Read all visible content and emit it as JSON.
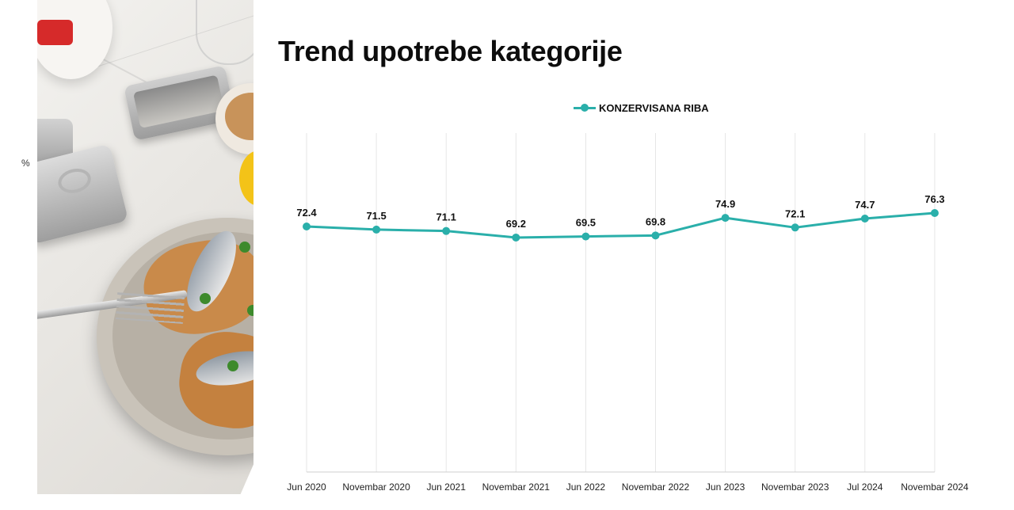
{
  "title": "Trend upotrebe kategorije",
  "y_unit_label": "%",
  "colors": {
    "series": "#2aafaa",
    "gridline": "#e6e6e6",
    "axis": "#cfcfcf"
  },
  "chart_data": {
    "type": "line",
    "title": "Trend upotrebe kategorije",
    "ylabel": "%",
    "legend_position": "top",
    "grid": "vertical",
    "categories": [
      "Jun 2020",
      "Novembar 2020",
      "Jun 2021",
      "Novembar 2021",
      "Jun 2022",
      "Novembar 2022",
      "Jun 2023",
      "Novembar 2023",
      "Jul 2024",
      "Novembar 2024"
    ],
    "series": [
      {
        "name": "KONZERVISANA RIBA",
        "values": [
          72.4,
          71.5,
          71.1,
          69.2,
          69.5,
          69.8,
          74.9,
          72.1,
          74.7,
          76.3
        ],
        "labels": [
          "72.4",
          "71.5",
          "71.1",
          "69.2",
          "69.5",
          "69.8",
          "74.9",
          "72.1",
          "74.7",
          "76.3"
        ]
      }
    ]
  }
}
